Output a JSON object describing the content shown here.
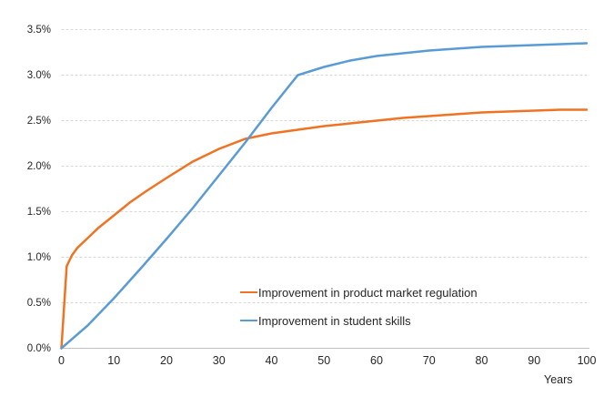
{
  "chart_data": {
    "type": "line",
    "title": "",
    "xlabel": "Years",
    "ylabel": "",
    "xlim": [
      0,
      100
    ],
    "ylim": [
      0,
      3.5
    ],
    "grid": "horizontal dashed gridlines, solid bottom axis, no left axis line",
    "legend_position": "inside plot, lower middle, stacked vertically",
    "x_ticks": [
      0,
      10,
      20,
      30,
      40,
      50,
      60,
      70,
      80,
      90,
      100
    ],
    "y_ticks": [
      {
        "value": 0.0,
        "label": "0.0%"
      },
      {
        "value": 0.5,
        "label": "0.5%"
      },
      {
        "value": 1.0,
        "label": "1.0%"
      },
      {
        "value": 1.5,
        "label": "1.5%"
      },
      {
        "value": 2.0,
        "label": "2.0%"
      },
      {
        "value": 2.5,
        "label": "2.5%"
      },
      {
        "value": 3.0,
        "label": "3.0%"
      },
      {
        "value": 3.5,
        "label": "3.5%"
      }
    ],
    "series": [
      {
        "name": "Improvement in product market regulation",
        "color": "#F07323",
        "x": [
          0,
          1,
          2,
          3,
          5,
          7,
          10,
          13,
          16,
          20,
          25,
          30,
          35,
          40,
          45,
          50,
          55,
          60,
          65,
          70,
          75,
          80,
          85,
          90,
          95,
          100
        ],
        "y": [
          0,
          0.9,
          1.02,
          1.1,
          1.21,
          1.32,
          1.46,
          1.6,
          1.72,
          1.87,
          2.05,
          2.19,
          2.3,
          2.36,
          2.4,
          2.44,
          2.47,
          2.5,
          2.53,
          2.55,
          2.57,
          2.59,
          2.6,
          2.61,
          2.62,
          2.62
        ],
        "unit": "percent"
      },
      {
        "name": "Improvement in student skills",
        "color": "#5B9BD5",
        "x": [
          0,
          5,
          10,
          15,
          20,
          25,
          30,
          35,
          40,
          45,
          50,
          55,
          60,
          65,
          70,
          75,
          80,
          85,
          90,
          95,
          100
        ],
        "y": [
          0,
          0.25,
          0.55,
          0.87,
          1.2,
          1.54,
          1.9,
          2.26,
          2.64,
          3.0,
          3.09,
          3.16,
          3.21,
          3.24,
          3.27,
          3.29,
          3.31,
          3.32,
          3.33,
          3.34,
          3.35
        ],
        "unit": "percent"
      }
    ]
  },
  "style": {
    "gridline_color": "#D9D9D9",
    "axis_line_color": "#C0C0C0",
    "text_color": "#262626",
    "background_color": "#FFFFFF",
    "line_width": 2.5
  }
}
